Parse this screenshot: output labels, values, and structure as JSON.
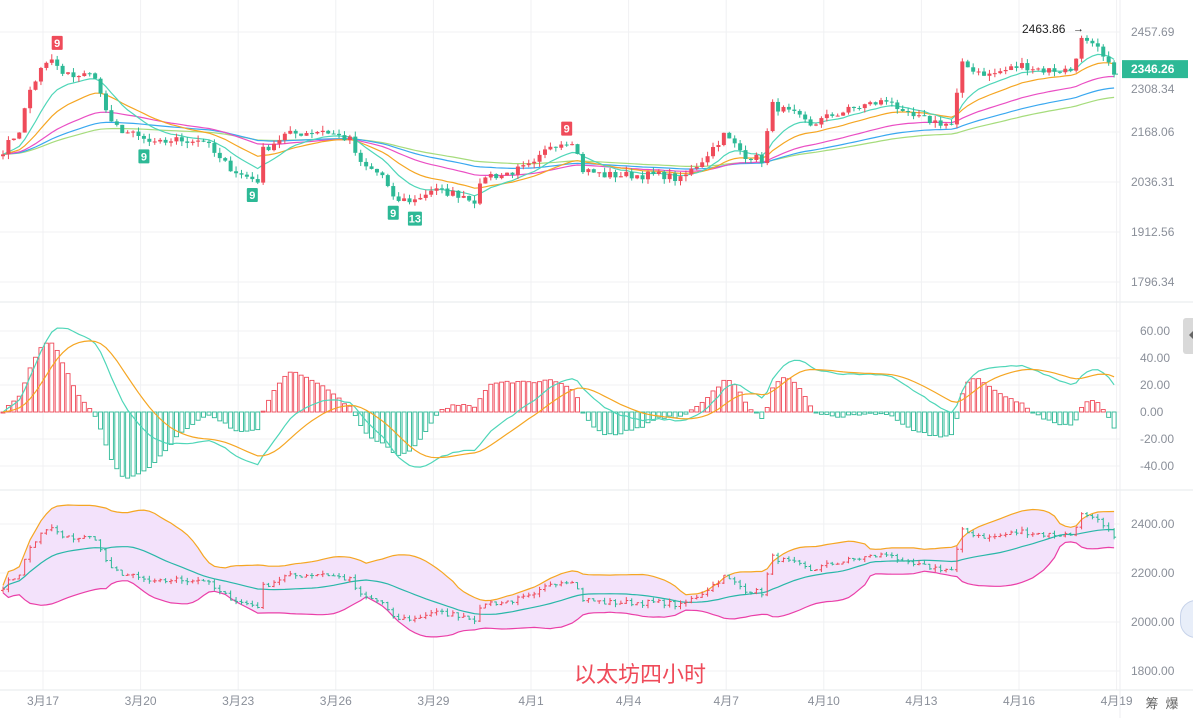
{
  "chart_data": {
    "type": "candlestick",
    "title": "以太坊四小时",
    "candles": 206,
    "close_keypoints": [
      [
        0,
        2145
      ],
      [
        3,
        2198
      ],
      [
        5,
        2304
      ],
      [
        7,
        2357
      ],
      [
        9,
        2384
      ],
      [
        11,
        2344
      ],
      [
        17,
        2344
      ],
      [
        18,
        2291
      ],
      [
        20,
        2212
      ],
      [
        24,
        2185
      ],
      [
        28,
        2159
      ],
      [
        31,
        2172
      ],
      [
        37,
        2172
      ],
      [
        40,
        2119
      ],
      [
        44,
        2079
      ],
      [
        47,
        2066
      ],
      [
        48,
        2145
      ],
      [
        52,
        2185
      ],
      [
        59,
        2198
      ],
      [
        64,
        2172
      ],
      [
        66,
        2106
      ],
      [
        70,
        2079
      ],
      [
        72,
        2013
      ],
      [
        76,
        2013
      ],
      [
        79,
        2040
      ],
      [
        85,
        2026
      ],
      [
        87,
        2013
      ],
      [
        89,
        2079
      ],
      [
        92,
        2079
      ],
      [
        98,
        2106
      ],
      [
        101,
        2159
      ],
      [
        105,
        2172
      ],
      [
        107,
        2093
      ],
      [
        111,
        2079
      ],
      [
        122,
        2079
      ],
      [
        125,
        2066
      ],
      [
        129,
        2119
      ],
      [
        133,
        2185
      ],
      [
        137,
        2132
      ],
      [
        140,
        2119
      ],
      [
        142,
        2264
      ],
      [
        146,
        2238
      ],
      [
        149,
        2212
      ],
      [
        153,
        2238
      ],
      [
        159,
        2264
      ],
      [
        164,
        2278
      ],
      [
        166,
        2238
      ],
      [
        175,
        2212
      ],
      [
        177,
        2370
      ],
      [
        182,
        2344
      ],
      [
        188,
        2370
      ],
      [
        192,
        2357
      ],
      [
        197,
        2357
      ],
      [
        199,
        2436
      ],
      [
        202,
        2410
      ],
      [
        205,
        2346
      ]
    ],
    "price_axis": {
      "ticks": [
        "2457.69",
        "2308.34",
        "2168.06",
        "2036.31",
        "1912.56",
        "1796.34"
      ],
      "range": [
        1796.34,
        2457.69
      ]
    },
    "current_price": "2346.26",
    "high_annotation": "2463.86",
    "macd_axis": {
      "ticks": [
        "60.00",
        "40.00",
        "20.00",
        "0.00",
        "-20.00",
        "-40.00"
      ],
      "range": [
        -40,
        60
      ]
    },
    "boll_axis": {
      "ticks": [
        "2400.00",
        "2200.00",
        "2000.00",
        "1800.00"
      ],
      "range": [
        1800,
        2400
      ]
    },
    "x_labels": [
      "3月17",
      "3月20",
      "3月23",
      "3月26",
      "3月29",
      "4月1",
      "4月4",
      "4月7",
      "4月10",
      "4月13",
      "4月16",
      "4月19"
    ],
    "td_markers": [
      {
        "candle": 10,
        "label": "9",
        "type": "sell"
      },
      {
        "candle": 26,
        "label": "9",
        "type": "buy"
      },
      {
        "candle": 46,
        "label": "9",
        "type": "buy"
      },
      {
        "candle": 72,
        "label": "9",
        "type": "buy"
      },
      {
        "candle": 76,
        "label": "13",
        "type": "buy"
      },
      {
        "candle": 104,
        "label": "9",
        "type": "sell"
      }
    ],
    "ma_periods": [
      10,
      20,
      40,
      60,
      80
    ],
    "colors": {
      "up": "#ef4b5a",
      "down": "#2db996",
      "ma": [
        "#4fd6b8",
        "#f5a623",
        "#ea4fc4",
        "#3aa8f0",
        "#a6dc7c"
      ],
      "band_fill": "#f3e2fb",
      "band_upper": "#f5a623",
      "band_lower": "#ea3fa8",
      "band_mid": "#29b7a8",
      "macd_dif": "#4fd6b8",
      "macd_dea": "#f5a623"
    }
  },
  "footer": {
    "icons": [
      "筹",
      "爆"
    ]
  }
}
